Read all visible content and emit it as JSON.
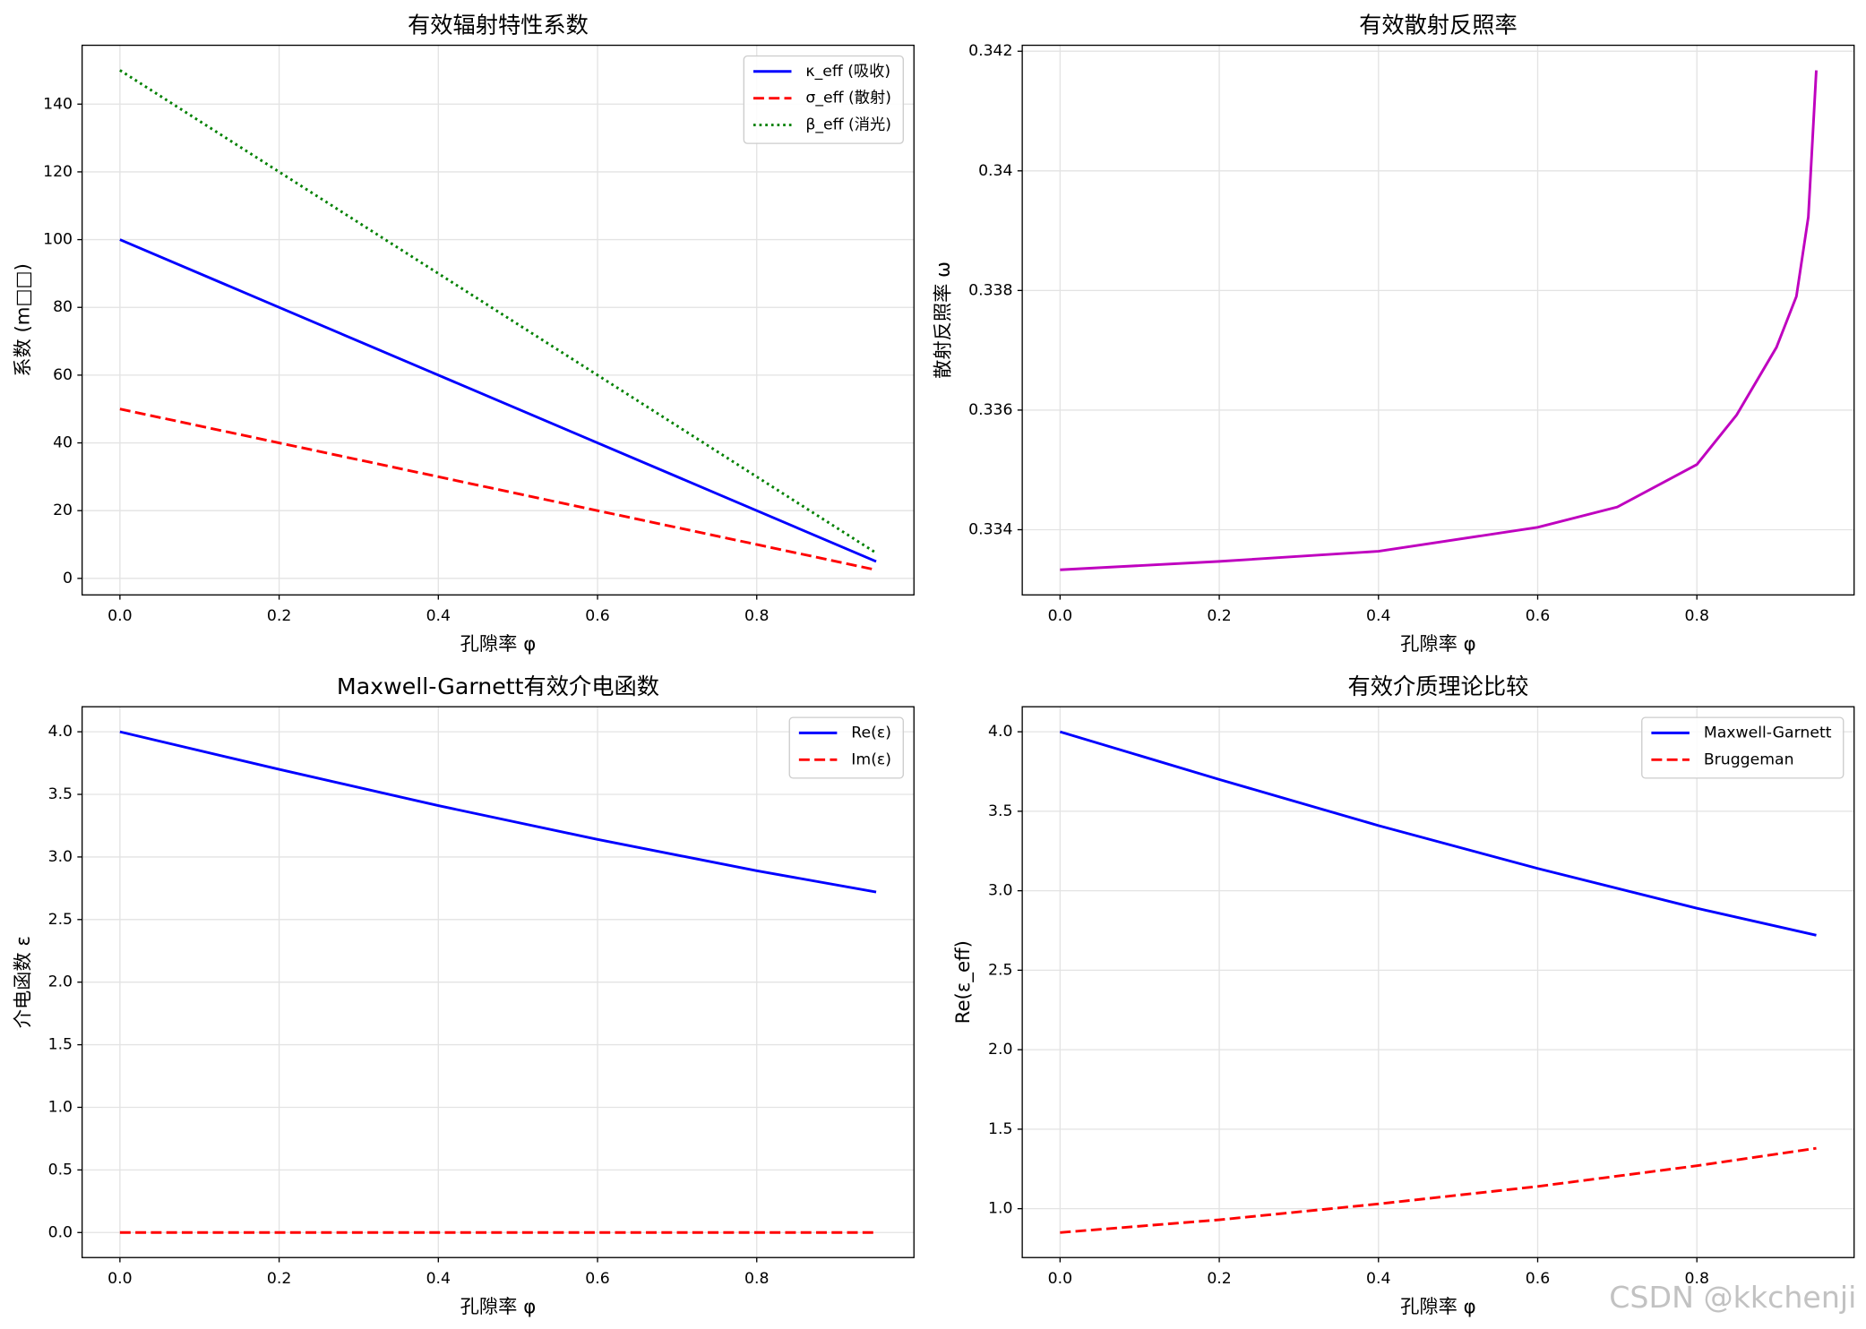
{
  "chart_data": [
    {
      "type": "line",
      "title": "有效辐射特性系数",
      "xlabel": "孔隙率 φ",
      "ylabel": "系数 (m□□)",
      "x": [
        0,
        0.19,
        0.38,
        0.57,
        0.76,
        0.95
      ],
      "series": [
        {
          "name": "κ_eff (吸收)",
          "color": "#0000ff",
          "dash": "solid",
          "values": [
            100,
            81,
            62,
            43,
            24,
            5
          ]
        },
        {
          "name": "σ_eff (散射)",
          "color": "#ff0000",
          "dash": "dashed",
          "values": [
            50,
            40.5,
            31,
            21.5,
            12,
            2.5
          ]
        },
        {
          "name": "β_eff (消光)",
          "color": "#008000",
          "dash": "dotted",
          "values": [
            150,
            121.5,
            93,
            64.5,
            36,
            7.5
          ]
        }
      ],
      "xlim": [
        -0.0475,
        0.9975
      ],
      "xticks": [
        {
          "value": 0,
          "label": "0.0"
        },
        0.2,
        0.4,
        0.6,
        0.8
      ],
      "ylim": [
        -4.875,
        157.375
      ],
      "yticks": [
        0,
        20,
        40,
        60,
        80,
        100,
        120,
        140
      ],
      "grid": true,
      "legend": "upper right"
    },
    {
      "type": "line",
      "title": "有效散射反照率",
      "xlabel": "孔隙率 φ",
      "ylabel": "散射反照率 ω",
      "x": [
        0,
        0.2,
        0.4,
        0.6,
        0.7,
        0.8,
        0.85,
        0.9,
        0.925,
        0.94,
        0.95
      ],
      "series": [
        {
          "name": "ω",
          "color": "#bf00bf",
          "dash": "solid",
          "values": [
            0.33333,
            0.33347,
            0.33364,
            0.33404,
            0.33438,
            0.33509,
            0.33592,
            0.33705,
            0.3379,
            0.33923,
            0.34168
          ]
        }
      ],
      "xlim": [
        -0.0475,
        0.9975
      ],
      "xticks": [
        {
          "value": 0,
          "label": "0.0"
        },
        0.2,
        0.4,
        0.6,
        0.8
      ],
      "ylim": [
        0.33291,
        0.3421
      ],
      "yticks": [
        0.334,
        0.336,
        0.338,
        0.34,
        0.342
      ],
      "grid": true,
      "legend": "none"
    },
    {
      "type": "line",
      "title": "Maxwell-Garnett有效介电函数",
      "xlabel": "孔隙率 φ",
      "ylabel": "介电函数 ε",
      "x": [
        0,
        0.2,
        0.4,
        0.6,
        0.8,
        0.95
      ],
      "series": [
        {
          "name": "Re(ε)",
          "color": "#0000ff",
          "dash": "solid",
          "values": [
            4.0,
            3.7,
            3.41,
            3.14,
            2.89,
            2.72
          ]
        },
        {
          "name": "Im(ε)",
          "color": "#ff0000",
          "dash": "dashed",
          "values": [
            0,
            0,
            0,
            0,
            0,
            0
          ]
        }
      ],
      "xlim": [
        -0.0475,
        0.9975
      ],
      "xticks": [
        {
          "value": 0,
          "label": "0.0"
        },
        0.2,
        0.4,
        0.6,
        0.8
      ],
      "ylim": [
        -0.2,
        4.2
      ],
      "yticks": [
        {
          "value": 0,
          "label": "0.0"
        },
        0.5,
        {
          "value": 1,
          "label": "1.0"
        },
        1.5,
        {
          "value": 2,
          "label": "2.0"
        },
        2.5,
        {
          "value": 3,
          "label": "3.0"
        },
        3.5,
        {
          "value": 4,
          "label": "4.0"
        }
      ],
      "grid": true,
      "legend": "upper right"
    },
    {
      "type": "line",
      "title": "有效介质理论比较",
      "xlabel": "孔隙率 φ",
      "ylabel": "Re(ε_eff)",
      "x": [
        0,
        0.2,
        0.4,
        0.6,
        0.8,
        0.95
      ],
      "series": [
        {
          "name": "Maxwell-Garnett",
          "color": "#0000ff",
          "dash": "solid",
          "values": [
            4.0,
            3.7,
            3.41,
            3.14,
            2.89,
            2.72
          ]
        },
        {
          "name": "Bruggeman",
          "color": "#ff0000",
          "dash": "dashed",
          "values": [
            0.85,
            0.93,
            1.03,
            1.14,
            1.27,
            1.38
          ]
        }
      ],
      "xlim": [
        -0.0475,
        0.9975
      ],
      "xticks": [
        {
          "value": 0,
          "label": "0.0"
        },
        0.2,
        0.4,
        0.6,
        0.8
      ],
      "ylim": [
        0.6925,
        4.1575
      ],
      "yticks": [
        {
          "value": 1,
          "label": "1.0"
        },
        1.5,
        {
          "value": 2,
          "label": "2.0"
        },
        2.5,
        {
          "value": 3,
          "label": "3.0"
        },
        3.5,
        {
          "value": 4,
          "label": "4.0"
        }
      ],
      "grid": true,
      "legend": "upper right"
    }
  ],
  "watermark": "CSDN @kkchenji"
}
